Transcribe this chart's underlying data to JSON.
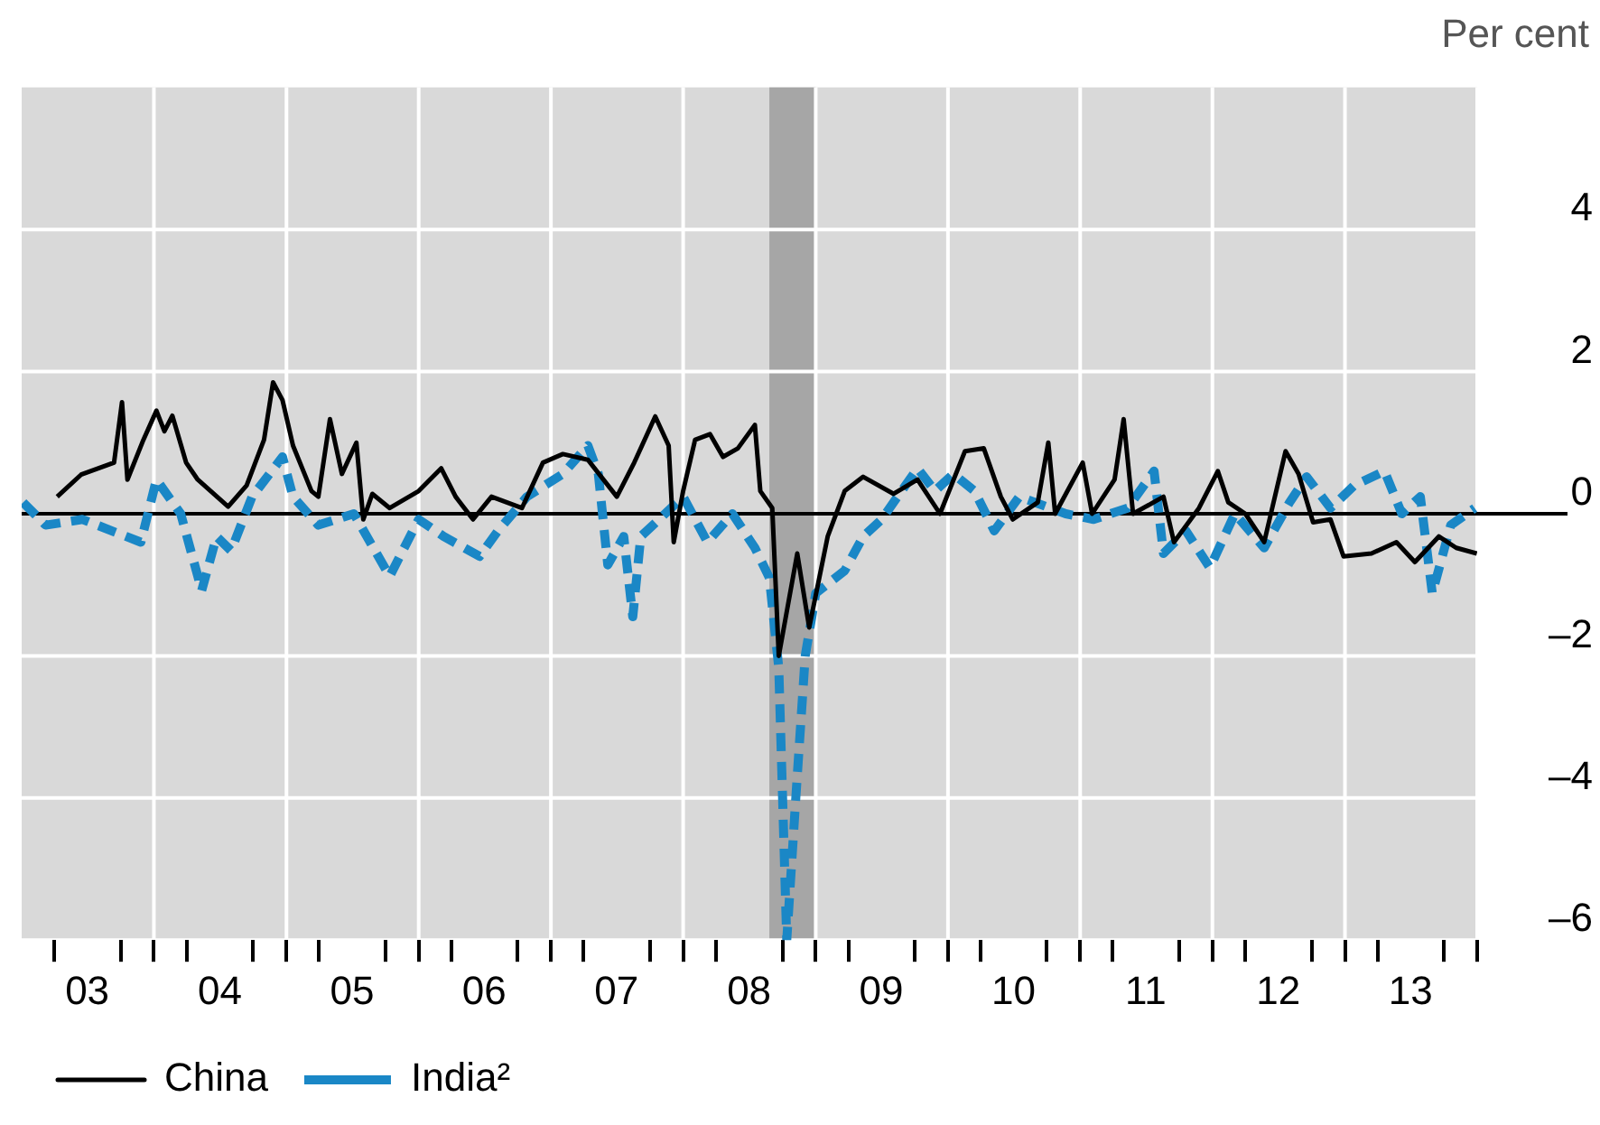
{
  "chart_data": {
    "type": "line",
    "ylabel": "Per cent",
    "xlim": [
      "2003-01-01",
      "2014-01-01"
    ],
    "ylim": [
      -6,
      6
    ],
    "yticks": [
      {
        "value": -6,
        "label": "–6"
      },
      {
        "value": -4,
        "label": "–4"
      },
      {
        "value": -2,
        "label": "–2"
      },
      0,
      2,
      4
    ],
    "xticks": [
      {
        "value": "2003-04-01",
        "label": null
      },
      {
        "value": "2003-07-01",
        "label": "03"
      },
      {
        "value": "2003-10-01",
        "label": null
      },
      {
        "value": "2004-01-01",
        "label": null
      },
      {
        "value": "2004-04-01",
        "label": null
      },
      {
        "value": "2004-07-01",
        "label": "04"
      },
      {
        "value": "2004-10-01",
        "label": null
      },
      {
        "value": "2005-01-01",
        "label": null
      },
      {
        "value": "2005-04-01",
        "label": null
      },
      {
        "value": "2005-07-01",
        "label": "05"
      },
      {
        "value": "2005-10-01",
        "label": null
      },
      {
        "value": "2006-01-01",
        "label": null
      },
      {
        "value": "2006-04-01",
        "label": null
      },
      {
        "value": "2006-07-01",
        "label": "06"
      },
      {
        "value": "2006-10-01",
        "label": null
      },
      {
        "value": "2007-01-01",
        "label": null
      },
      {
        "value": "2007-04-01",
        "label": null
      },
      {
        "value": "2007-07-01",
        "label": "07"
      },
      {
        "value": "2007-10-01",
        "label": null
      },
      {
        "value": "2008-01-01",
        "label": null
      },
      {
        "value": "2008-04-01",
        "label": null
      },
      {
        "value": "2008-07-01",
        "label": "08"
      },
      {
        "value": "2008-10-01",
        "label": null
      },
      {
        "value": "2009-01-01",
        "label": null
      },
      {
        "value": "2009-04-01",
        "label": null
      },
      {
        "value": "2009-07-01",
        "label": "09"
      },
      {
        "value": "2009-10-01",
        "label": null
      },
      {
        "value": "2010-01-01",
        "label": null
      },
      {
        "value": "2010-04-01",
        "label": null
      },
      {
        "value": "2010-07-01",
        "label": "10"
      },
      {
        "value": "2010-10-01",
        "label": null
      },
      {
        "value": "2011-01-01",
        "label": null
      },
      {
        "value": "2011-04-01",
        "label": null
      },
      {
        "value": "2011-07-01",
        "label": "11"
      },
      {
        "value": "2011-10-01",
        "label": null
      },
      {
        "value": "2012-01-01",
        "label": null
      },
      {
        "value": "2012-04-01",
        "label": null
      },
      {
        "value": "2012-07-01",
        "label": "12"
      },
      {
        "value": "2012-10-01",
        "label": null
      },
      {
        "value": "2013-01-01",
        "label": null
      },
      {
        "value": "2013-04-01",
        "label": null
      },
      {
        "value": "2013-07-01",
        "label": "13"
      },
      {
        "value": "2013-10-01",
        "label": null
      },
      {
        "value": "2014-01-01",
        "label": null
      }
    ],
    "grid": true,
    "legend": "bottom left",
    "marker": "none",
    "bands": [
      {
        "axis": "x",
        "from": "2008-08-26",
        "to": "2009-01-01",
        "color": "#a6a6a6"
      }
    ],
    "ref_lines": [
      {
        "axis": "y",
        "value": 0,
        "color": "#000000"
      }
    ],
    "series": [
      {
        "name": "China",
        "color": "#000000",
        "line_style": "solid",
        "x": [
          "2003-04-09",
          "2003-06-14",
          "2003-09-13",
          "2003-10-05",
          "2003-10-20",
          "2003-12-03",
          "2004-01-08",
          "2004-01-30",
          "2004-02-21",
          "2004-03-30",
          "2004-05-01",
          "2004-07-24",
          "2004-09-13",
          "2004-10-31",
          "2004-11-25",
          "2004-12-21",
          "2005-01-19",
          "2005-03-11",
          "2005-03-30",
          "2005-05-01",
          "2005-06-03",
          "2005-07-13",
          "2005-08-01",
          "2005-08-26",
          "2005-10-13",
          "2006-01-01",
          "2006-03-04",
          "2006-04-13",
          "2006-05-31",
          "2006-07-21",
          "2006-10-13",
          "2006-12-10",
          "2007-02-03",
          "2007-04-13",
          "2007-07-02",
          "2007-08-19",
          "2007-10-16",
          "2007-11-22",
          "2007-12-06",
          "2008-01-01",
          "2008-02-03",
          "2008-03-15",
          "2008-04-20",
          "2008-05-31",
          "2008-07-17",
          "2008-08-01",
          "2008-09-03",
          "2008-09-21",
          "2008-11-11",
          "2008-12-14",
          "2009-02-03",
          "2009-03-22",
          "2009-05-12",
          "2009-08-04",
          "2009-10-09",
          "2009-12-10",
          "2010-02-17",
          "2010-04-10",
          "2010-05-27",
          "2010-06-29",
          "2010-09-06",
          "2010-10-05",
          "2010-10-24",
          "2011-01-08",
          "2011-02-03",
          "2011-04-06",
          "2011-05-01",
          "2011-05-27",
          "2011-08-19",
          "2011-09-17",
          "2011-11-25",
          "2012-01-16",
          "2012-02-14",
          "2012-04-01",
          "2012-05-23",
          "2012-07-21",
          "2012-08-26",
          "2012-10-05",
          "2012-11-22",
          "2012-12-28",
          "2013-03-15",
          "2013-05-23",
          "2013-07-13",
          "2013-09-17",
          "2013-11-04",
          "2013-12-31"
        ],
        "values": [
          0.24,
          0.55,
          0.72,
          1.57,
          0.48,
          1.04,
          1.45,
          1.16,
          1.38,
          0.72,
          0.48,
          0.1,
          0.4,
          1.04,
          1.85,
          1.6,
          0.96,
          0.32,
          0.24,
          1.33,
          0.56,
          1.0,
          -0.08,
          0.28,
          0.08,
          0.32,
          0.64,
          0.24,
          -0.08,
          0.24,
          0.08,
          0.72,
          0.84,
          0.76,
          0.24,
          0.72,
          1.37,
          0.96,
          -0.4,
          0.32,
          1.04,
          1.12,
          0.8,
          0.92,
          1.25,
          0.32,
          0.08,
          -2.0,
          -0.56,
          -1.6,
          -0.32,
          0.32,
          0.52,
          0.28,
          0.48,
          0,
          0.88,
          0.92,
          0.24,
          -0.08,
          0.16,
          1.0,
          0,
          0.72,
          0,
          0.48,
          1.33,
          0,
          0.24,
          -0.4,
          0.08,
          0.6,
          0.16,
          0,
          -0.4,
          0.88,
          0.56,
          -0.12,
          -0.08,
          -0.6,
          -0.56,
          -0.4,
          -0.68,
          -0.32,
          -0.48,
          -0.56
        ]
      },
      {
        "name": "India²",
        "color": "#1a87c6",
        "line_style": "dashed",
        "x": [
          "2003-01-05",
          "2003-03-08",
          "2003-06-18",
          "2003-11-26",
          "2004-01-08",
          "2004-03-15",
          "2004-05-12",
          "2004-06-22",
          "2004-08-01",
          "2004-09-28",
          "2004-12-21",
          "2005-01-19",
          "2005-03-30",
          "2005-07-06",
          "2005-10-13",
          "2006-01-01",
          "2006-03-11",
          "2006-06-18",
          "2006-08-08",
          "2006-10-27",
          "2007-02-03",
          "2007-04-13",
          "2007-05-12",
          "2007-06-07",
          "2007-07-21",
          "2007-08-15",
          "2007-09-06",
          "2007-10-27",
          "2008-01-01",
          "2008-03-08",
          "2008-05-16",
          "2008-07-17",
          "2008-08-26",
          "2008-09-21",
          "2008-10-13",
          "2008-11-07",
          "2008-12-03",
          "2009-01-01",
          "2009-03-22",
          "2009-05-12",
          "2009-07-02",
          "2009-10-09",
          "2009-11-26",
          "2010-01-16",
          "2010-03-15",
          "2010-05-09",
          "2010-07-17",
          "2010-11-22",
          "2011-02-07",
          "2011-05-12",
          "2011-07-24",
          "2011-08-19",
          "2011-10-20",
          "2011-12-25",
          "2012-03-03",
          "2012-05-23",
          "2012-08-01",
          "2012-09-17",
          "2012-11-22",
          "2013-01-27",
          "2013-04-20",
          "2013-06-07",
          "2013-07-28",
          "2013-08-30",
          "2013-10-20",
          "2013-12-25"
        ],
        "values": [
          0.16,
          -0.16,
          -0.08,
          -0.4,
          0.48,
          0,
          -1.08,
          -0.32,
          -0.52,
          0.24,
          0.8,
          0.24,
          -0.16,
          0,
          -0.88,
          -0.08,
          -0.32,
          -0.6,
          -0.24,
          0.24,
          0.56,
          0.96,
          0.56,
          -0.72,
          -0.32,
          -1.45,
          -0.32,
          -0.08,
          0.24,
          -0.4,
          0,
          -0.48,
          -0.9,
          -2.17,
          -6,
          -4,
          -2,
          -1.12,
          -0.8,
          -0.32,
          -0.08,
          0.64,
          0.32,
          0.56,
          0.32,
          -0.24,
          0.24,
          0,
          -0.08,
          0.08,
          0.6,
          -0.56,
          -0.24,
          -0.76,
          0,
          -0.48,
          0.16,
          0.52,
          0.08,
          0.4,
          0.6,
          0,
          0.24,
          -1.12,
          -0.16,
          0.08
        ]
      }
    ]
  }
}
